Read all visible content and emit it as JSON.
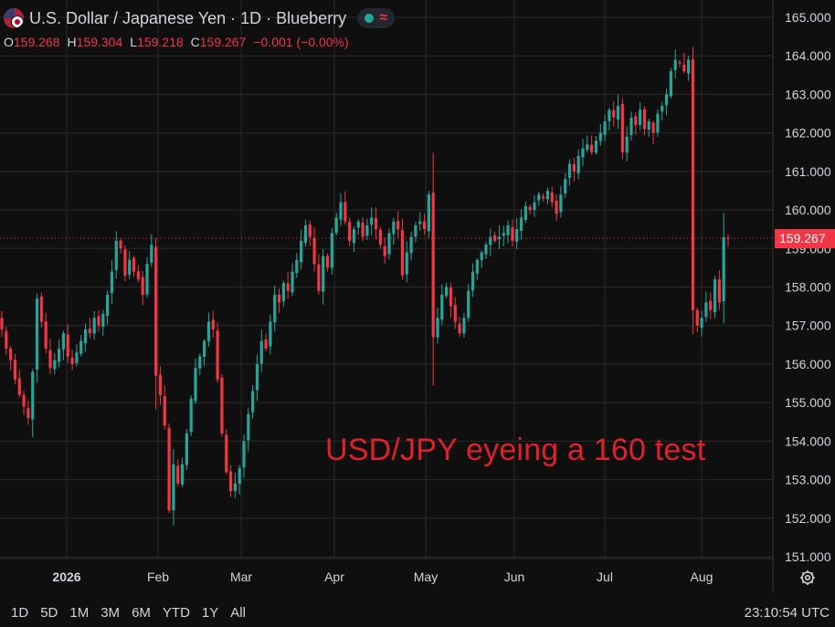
{
  "header": {
    "symbol_title": "U.S. Dollar / Japanese Yen · 1D · Blueberry",
    "flag_icon": "usd-jpy-flag-icon",
    "status_icon": "market-open-icon",
    "indicator_icon": "wave-icon"
  },
  "ohlc": {
    "o_label": "O",
    "o_value": "159.268",
    "h_label": "H",
    "h_value": "159.304",
    "l_label": "L",
    "l_value": "159.218",
    "c_label": "C",
    "c_value": "159.267",
    "change": "−0.001 (−0.00%)"
  },
  "annotation": "USD/JPY eyeing a 160 test",
  "current_price_label": "159.267",
  "timeframes": [
    "1D",
    "5D",
    "1M",
    "3M",
    "6M",
    "YTD",
    "1Y",
    "All"
  ],
  "clock": "23:10:54 UTC",
  "colors": {
    "up": "#26a69a",
    "down": "#f23645",
    "background": "#0f0f0f",
    "grid": "#2a2a2a",
    "annotation": "#e0202a"
  },
  "chart_data": {
    "type": "candlestick",
    "y_ticks": [
      "151.000",
      "152.000",
      "153.000",
      "154.000",
      "155.000",
      "156.000",
      "157.000",
      "158.000",
      "159.000",
      "160.000",
      "161.000",
      "162.000",
      "163.000",
      "164.000",
      "165.000"
    ],
    "ylim": [
      150.8,
      165.3
    ],
    "x_labels": [
      "2026",
      "Feb",
      "Mar",
      "Apr",
      "May",
      "Jun",
      "Jul",
      "Aug"
    ],
    "current_price": 159.267,
    "closes": [
      156.9,
      156.4,
      156.1,
      155.6,
      155.2,
      154.9,
      154.6,
      155.8,
      157.7,
      157.1,
      156.4,
      155.9,
      156.1,
      156.4,
      156.8,
      156.2,
      156.0,
      156.3,
      156.6,
      156.9,
      156.8,
      157.2,
      157.0,
      157.3,
      157.8,
      158.4,
      159.2,
      159.0,
      158.3,
      158.7,
      158.4,
      158.2,
      157.8,
      158.6,
      159.1,
      155.7,
      155.2,
      154.4,
      152.2,
      153.4,
      152.9,
      153.4,
      154.2,
      155.1,
      155.9,
      156.2,
      156.6,
      157.1,
      156.9,
      155.6,
      154.2,
      153.2,
      152.7,
      152.9,
      153.3,
      154.0,
      154.7,
      155.3,
      156.0,
      156.6,
      156.4,
      157.1,
      157.8,
      157.6,
      158.1,
      157.9,
      158.4,
      158.7,
      159.2,
      159.6,
      159.3,
      158.6,
      157.9,
      158.8,
      158.5,
      159.4,
      159.8,
      160.2,
      159.7,
      159.2,
      159.5,
      159.7,
      159.3,
      159.6,
      159.8,
      159.5,
      159.1,
      158.8,
      159.4,
      159.7,
      159.5,
      158.3,
      158.9,
      159.3,
      159.6,
      159.7,
      159.5,
      160.4,
      156.7,
      157.2,
      157.8,
      158.0,
      157.5,
      157.1,
      156.8,
      157.2,
      157.9,
      158.4,
      158.7,
      158.9,
      159.1,
      159.3,
      159.2,
      159.3,
      159.4,
      159.6,
      159.2,
      159.5,
      159.8,
      160.1,
      160.0,
      160.2,
      160.4,
      160.3,
      160.5,
      160.2,
      159.9,
      160.4,
      160.8,
      161.2,
      161.0,
      161.4,
      161.6,
      161.7,
      161.5,
      161.8,
      162.0,
      162.3,
      162.6,
      162.4,
      162.7,
      161.5,
      161.9,
      162.4,
      162.2,
      162.6,
      162.1,
      162.3,
      162.0,
      162.5,
      162.7,
      163.0,
      163.6,
      163.9,
      163.8,
      163.6,
      163.9,
      157.4,
      157.0,
      157.2,
      157.6,
      157.4,
      158.2,
      157.6,
      159.3,
      159.267
    ]
  }
}
